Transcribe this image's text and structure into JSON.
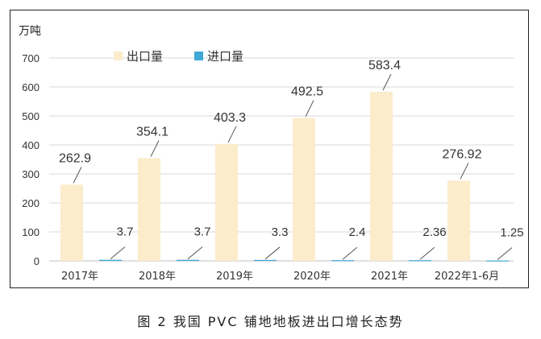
{
  "caption": "图 2  我国 PVC 铺地地板进出口增长态势",
  "chart_data": {
    "type": "bar",
    "yunit": "万吨",
    "categories": [
      "2017年",
      "2018年",
      "2019年",
      "2020年",
      "2021年",
      "2022年1-6月"
    ],
    "ylim": [
      0,
      700
    ],
    "yticks": [
      "0",
      "100",
      "200",
      "300",
      "400",
      "500",
      "600",
      "700"
    ],
    "grid": true,
    "legend_position": "top-left",
    "series": [
      {
        "name": "出口量",
        "values": [
          262.9,
          354.1,
          403.3,
          492.5,
          583.4,
          276.92
        ],
        "labels": [
          "262.9",
          "354.1",
          "403.3",
          "492.5",
          "583.4",
          "276.92"
        ],
        "color": "#fbeccb"
      },
      {
        "name": "进口量",
        "values": [
          3.7,
          3.7,
          3.3,
          2.4,
          2.36,
          1.25
        ],
        "labels": [
          "3.7",
          "3.7",
          "3.3",
          "2.4",
          "2.36",
          "1.25"
        ],
        "color": "#3fa7d6"
      }
    ]
  }
}
